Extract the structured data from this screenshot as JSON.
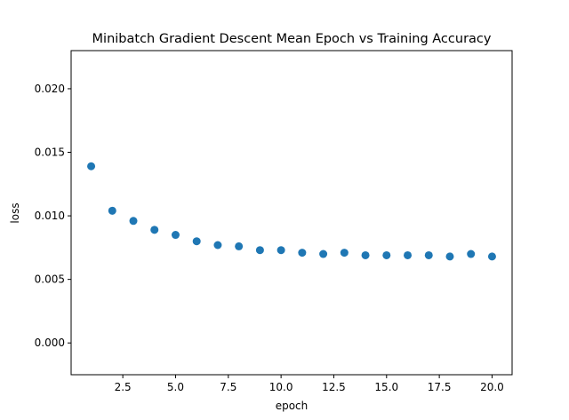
{
  "chart_data": {
    "type": "scatter",
    "title": "Minibatch Gradient Descent Mean Epoch vs Training Accuracy",
    "xlabel": "epoch",
    "ylabel": "loss",
    "xlim": [
      0.05,
      20.95
    ],
    "ylim": [
      -0.0025,
      0.023
    ],
    "xticks": [
      2.5,
      5.0,
      7.5,
      10.0,
      12.5,
      15.0,
      17.5,
      20.0
    ],
    "xtick_labels": [
      "2.5",
      "5.0",
      "7.5",
      "10.0",
      "12.5",
      "15.0",
      "17.5",
      "20.0"
    ],
    "yticks": [
      0.0,
      0.005,
      0.01,
      0.015,
      0.02
    ],
    "ytick_labels": [
      "0.000",
      "0.005",
      "0.010",
      "0.015",
      "0.020"
    ],
    "grid": false,
    "marker_color": "#1f77b4",
    "x": [
      1,
      2,
      3,
      4,
      5,
      6,
      7,
      8,
      9,
      10,
      11,
      12,
      13,
      14,
      15,
      16,
      17,
      18,
      19,
      20
    ],
    "y": [
      0.0139,
      0.0104,
      0.0096,
      0.0089,
      0.0085,
      0.008,
      0.0077,
      0.0076,
      0.0073,
      0.0073,
      0.0071,
      0.007,
      0.0071,
      0.0069,
      0.0069,
      0.0069,
      0.0069,
      0.0068,
      0.007,
      0.0068
    ]
  }
}
